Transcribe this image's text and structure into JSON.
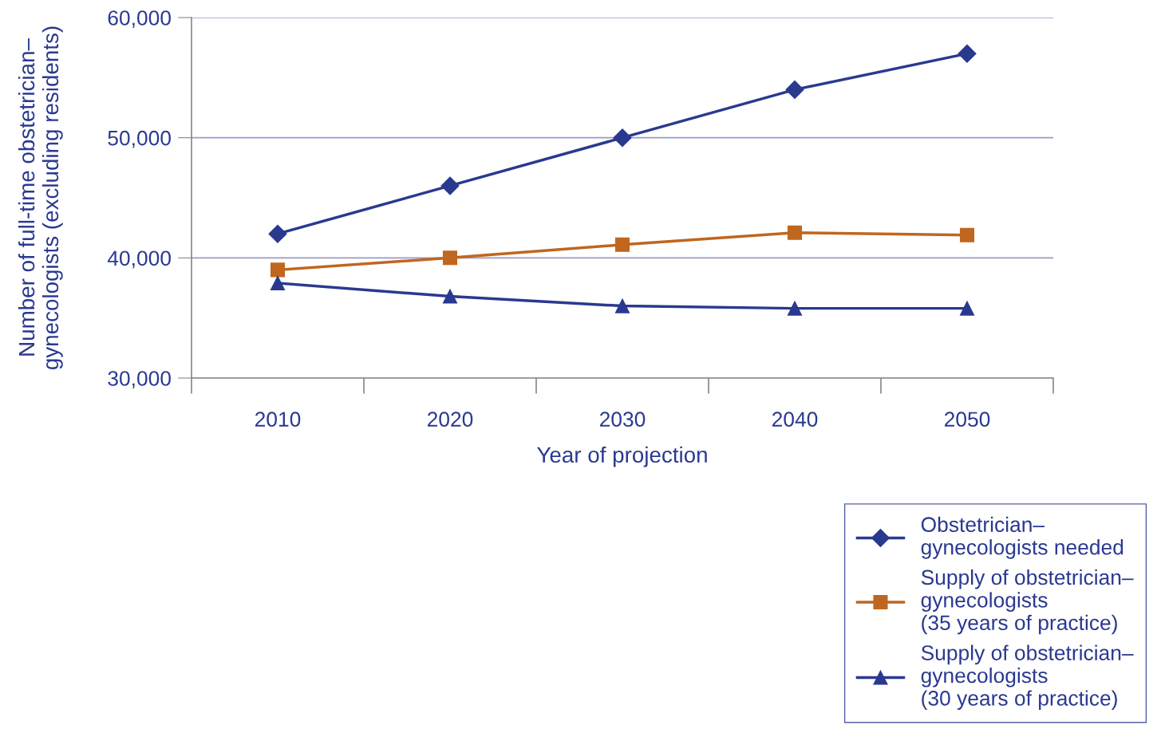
{
  "chart_data": {
    "type": "line",
    "xlabel": "Year of projection",
    "ylabel": "Number of full-time obstetrician–\ngynecologists (excluding residents)",
    "categories": [
      "2010",
      "2020",
      "2030",
      "2040",
      "2050"
    ],
    "series": [
      {
        "name": "Obstetrician–\ngynecologists needed",
        "color": "#2a3990",
        "marker": "diamond",
        "values": [
          42000,
          46000,
          50000,
          54000,
          57000
        ]
      },
      {
        "name": "Supply of obstetrician–\ngynecologists\n(35 years of practice)",
        "color": "#c0661e",
        "marker": "square",
        "values": [
          39000,
          40000,
          41100,
          42100,
          41900
        ]
      },
      {
        "name": "Supply of obstetrician–\ngynecologists\n(30 years of practice)",
        "color": "#2a3990",
        "marker": "triangle",
        "values": [
          37900,
          36800,
          36000,
          35800,
          35800
        ]
      }
    ],
    "ylim": [
      30000,
      60000
    ],
    "yticks": [
      {
        "value": 30000,
        "label": "30,000"
      },
      {
        "value": 40000,
        "label": "40,000"
      },
      {
        "value": 50000,
        "label": "50,000"
      },
      {
        "value": 60000,
        "label": "60,000"
      }
    ],
    "grid": "y",
    "legend": "bottom right",
    "line_style": "solid"
  }
}
